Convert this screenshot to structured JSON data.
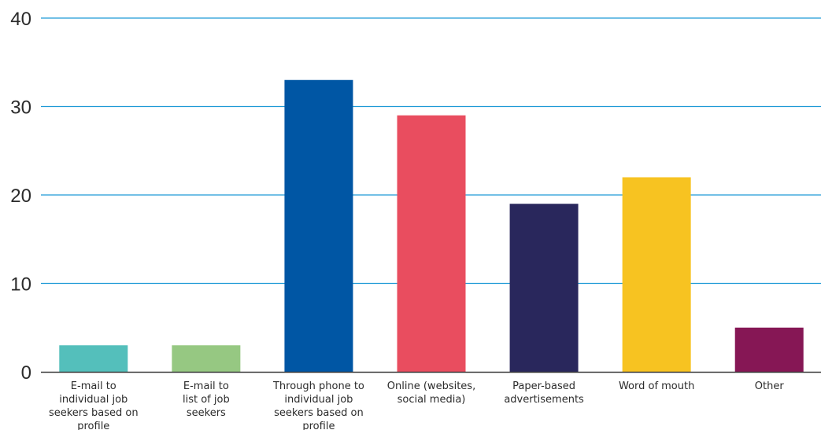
{
  "chart_data": {
    "type": "bar",
    "title": "",
    "xlabel": "",
    "ylabel": "",
    "ylim": [
      0,
      40
    ],
    "yticks": [
      0,
      10,
      20,
      30,
      40
    ],
    "grid": "horizontal",
    "categories": [
      "E-mail to individual job seekers based on profile",
      "E-mail to list of job seekers",
      "Through phone to individual job seekers based on profile",
      "Online (websites, social media)",
      "Paper-based advertisements",
      "Word of mouth",
      "Other"
    ],
    "category_lines": [
      [
        "E-mail to",
        "individual job",
        "seekers based on",
        "profile"
      ],
      [
        "E-mail to",
        "list of job",
        "seekers"
      ],
      [
        "Through phone to",
        "individual job",
        "seekers based on",
        "profile"
      ],
      [
        "Online (websites,",
        "social media)"
      ],
      [
        "Paper-based",
        "advertisements"
      ],
      [
        "Word of mouth"
      ],
      [
        "Other"
      ]
    ],
    "values": [
      3,
      3,
      33,
      29,
      19,
      22,
      5
    ],
    "colors": [
      "#54bfbb",
      "#96c882",
      "#0056a4",
      "#e94d5f",
      "#29275c",
      "#f7c321",
      "#861755"
    ],
    "gridline_color": "#1f9ad6",
    "axis_color": "#3a3a3a"
  }
}
